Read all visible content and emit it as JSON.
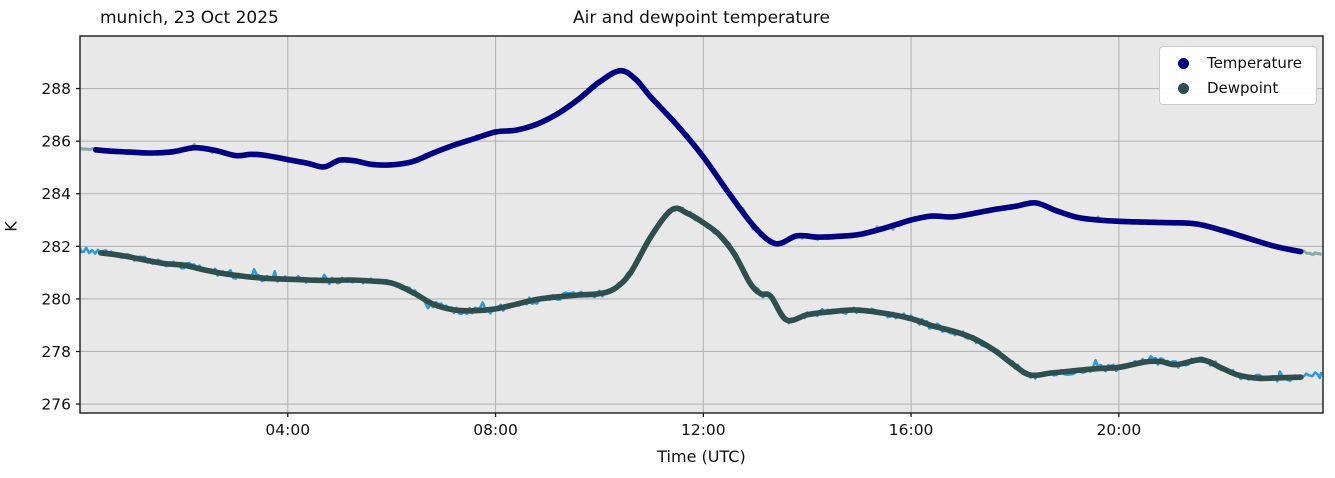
{
  "chart_data": {
    "type": "scatter",
    "title": "Air and dewpoint temperature",
    "subtitle": "munich, 23 Oct 2025",
    "xlabel": "Time (UTC)",
    "ylabel": "K",
    "grid": true,
    "legend_position": "upper right",
    "plot_background": "#e8e8e8",
    "grid_color": "#b5b5b5",
    "spine_color": "#1a1a1a",
    "xlim_hours": [
      0,
      23.93
    ],
    "ylim": [
      275.66,
      290.0
    ],
    "xticks": [
      {
        "t": 4,
        "label": "04:00"
      },
      {
        "t": 8,
        "label": "08:00"
      },
      {
        "t": 12,
        "label": "12:00"
      },
      {
        "t": 16,
        "label": "16:00"
      },
      {
        "t": 20,
        "label": "20:00"
      }
    ],
    "yticks": [
      {
        "v": 276,
        "label": "276"
      },
      {
        "v": 278,
        "label": "278"
      },
      {
        "v": 280,
        "label": "280"
      },
      {
        "v": 282,
        "label": "282"
      },
      {
        "v": 284,
        "label": "284"
      },
      {
        "v": 286,
        "label": "286"
      },
      {
        "v": 288,
        "label": "288"
      }
    ],
    "series": [
      {
        "name": "Temperature",
        "color": "#000080",
        "raw_color": "#86aaa8",
        "raw_noise_amp_K": 0.06,
        "units": "K",
        "points_t_hours_K": [
          [
            0.0,
            285.7
          ],
          [
            0.3,
            285.67
          ],
          [
            0.6,
            285.62
          ],
          [
            1.0,
            285.58
          ],
          [
            1.4,
            285.55
          ],
          [
            1.8,
            285.6
          ],
          [
            2.2,
            285.75
          ],
          [
            2.6,
            285.65
          ],
          [
            3.0,
            285.45
          ],
          [
            3.3,
            285.5
          ],
          [
            3.6,
            285.45
          ],
          [
            4.0,
            285.3
          ],
          [
            4.4,
            285.15
          ],
          [
            4.7,
            285.02
          ],
          [
            5.0,
            285.28
          ],
          [
            5.3,
            285.25
          ],
          [
            5.6,
            285.12
          ],
          [
            6.0,
            285.1
          ],
          [
            6.4,
            285.22
          ],
          [
            6.8,
            285.55
          ],
          [
            7.2,
            285.85
          ],
          [
            7.6,
            286.1
          ],
          [
            8.0,
            286.35
          ],
          [
            8.4,
            286.42
          ],
          [
            8.8,
            286.65
          ],
          [
            9.2,
            287.05
          ],
          [
            9.6,
            287.6
          ],
          [
            10.0,
            288.25
          ],
          [
            10.4,
            288.68
          ],
          [
            10.7,
            288.35
          ],
          [
            11.0,
            287.65
          ],
          [
            11.5,
            286.6
          ],
          [
            12.0,
            285.4
          ],
          [
            12.5,
            284.0
          ],
          [
            13.0,
            282.7
          ],
          [
            13.4,
            282.1
          ],
          [
            13.8,
            282.4
          ],
          [
            14.2,
            282.35
          ],
          [
            14.6,
            282.38
          ],
          [
            15.0,
            282.45
          ],
          [
            15.5,
            282.7
          ],
          [
            16.0,
            283.0
          ],
          [
            16.4,
            283.15
          ],
          [
            16.8,
            283.12
          ],
          [
            17.2,
            283.25
          ],
          [
            17.6,
            283.4
          ],
          [
            18.0,
            283.52
          ],
          [
            18.4,
            283.65
          ],
          [
            18.8,
            283.35
          ],
          [
            19.2,
            283.1
          ],
          [
            19.6,
            283.0
          ],
          [
            20.0,
            282.95
          ],
          [
            20.5,
            282.92
          ],
          [
            21.0,
            282.9
          ],
          [
            21.5,
            282.85
          ],
          [
            22.0,
            282.6
          ],
          [
            22.5,
            282.3
          ],
          [
            23.0,
            282.0
          ],
          [
            23.5,
            281.8
          ],
          [
            23.9,
            281.7
          ]
        ]
      },
      {
        "name": "Dewpoint",
        "color": "#2f4f4f",
        "raw_color": "#2d9bda",
        "raw_noise_amp_K": 0.13,
        "units": "K",
        "points_t_hours_K": [
          [
            0.0,
            281.9
          ],
          [
            0.4,
            281.75
          ],
          [
            0.8,
            281.65
          ],
          [
            1.2,
            281.5
          ],
          [
            1.6,
            281.35
          ],
          [
            2.0,
            281.28
          ],
          [
            2.4,
            281.1
          ],
          [
            2.8,
            280.95
          ],
          [
            3.2,
            280.85
          ],
          [
            3.6,
            280.78
          ],
          [
            4.0,
            280.75
          ],
          [
            4.4,
            280.72
          ],
          [
            4.8,
            280.7
          ],
          [
            5.2,
            280.72
          ],
          [
            5.6,
            280.68
          ],
          [
            6.0,
            280.6
          ],
          [
            6.4,
            280.25
          ],
          [
            6.8,
            279.8
          ],
          [
            7.2,
            279.58
          ],
          [
            7.6,
            279.55
          ],
          [
            8.0,
            279.62
          ],
          [
            8.4,
            279.8
          ],
          [
            8.8,
            279.98
          ],
          [
            9.2,
            280.08
          ],
          [
            9.6,
            280.15
          ],
          [
            10.0,
            280.2
          ],
          [
            10.3,
            280.4
          ],
          [
            10.6,
            281.0
          ],
          [
            11.0,
            282.4
          ],
          [
            11.4,
            283.4
          ],
          [
            11.7,
            283.25
          ],
          [
            12.0,
            282.9
          ],
          [
            12.3,
            282.45
          ],
          [
            12.6,
            281.7
          ],
          [
            12.9,
            280.6
          ],
          [
            13.1,
            280.2
          ],
          [
            13.3,
            280.1
          ],
          [
            13.6,
            279.2
          ],
          [
            14.0,
            279.4
          ],
          [
            14.4,
            279.5
          ],
          [
            14.9,
            279.58
          ],
          [
            15.4,
            279.48
          ],
          [
            16.0,
            279.25
          ],
          [
            16.4,
            278.98
          ],
          [
            16.8,
            278.78
          ],
          [
            17.2,
            278.5
          ],
          [
            17.6,
            278.05
          ],
          [
            18.0,
            277.45
          ],
          [
            18.3,
            277.1
          ],
          [
            18.7,
            277.18
          ],
          [
            19.2,
            277.28
          ],
          [
            19.6,
            277.35
          ],
          [
            20.0,
            277.4
          ],
          [
            20.5,
            277.6
          ],
          [
            20.8,
            277.62
          ],
          [
            21.1,
            277.5
          ],
          [
            21.6,
            277.68
          ],
          [
            22.0,
            277.35
          ],
          [
            22.3,
            277.1
          ],
          [
            22.7,
            276.98
          ],
          [
            23.1,
            277.0
          ],
          [
            23.5,
            277.02
          ],
          [
            23.9,
            277.1
          ]
        ]
      }
    ]
  }
}
